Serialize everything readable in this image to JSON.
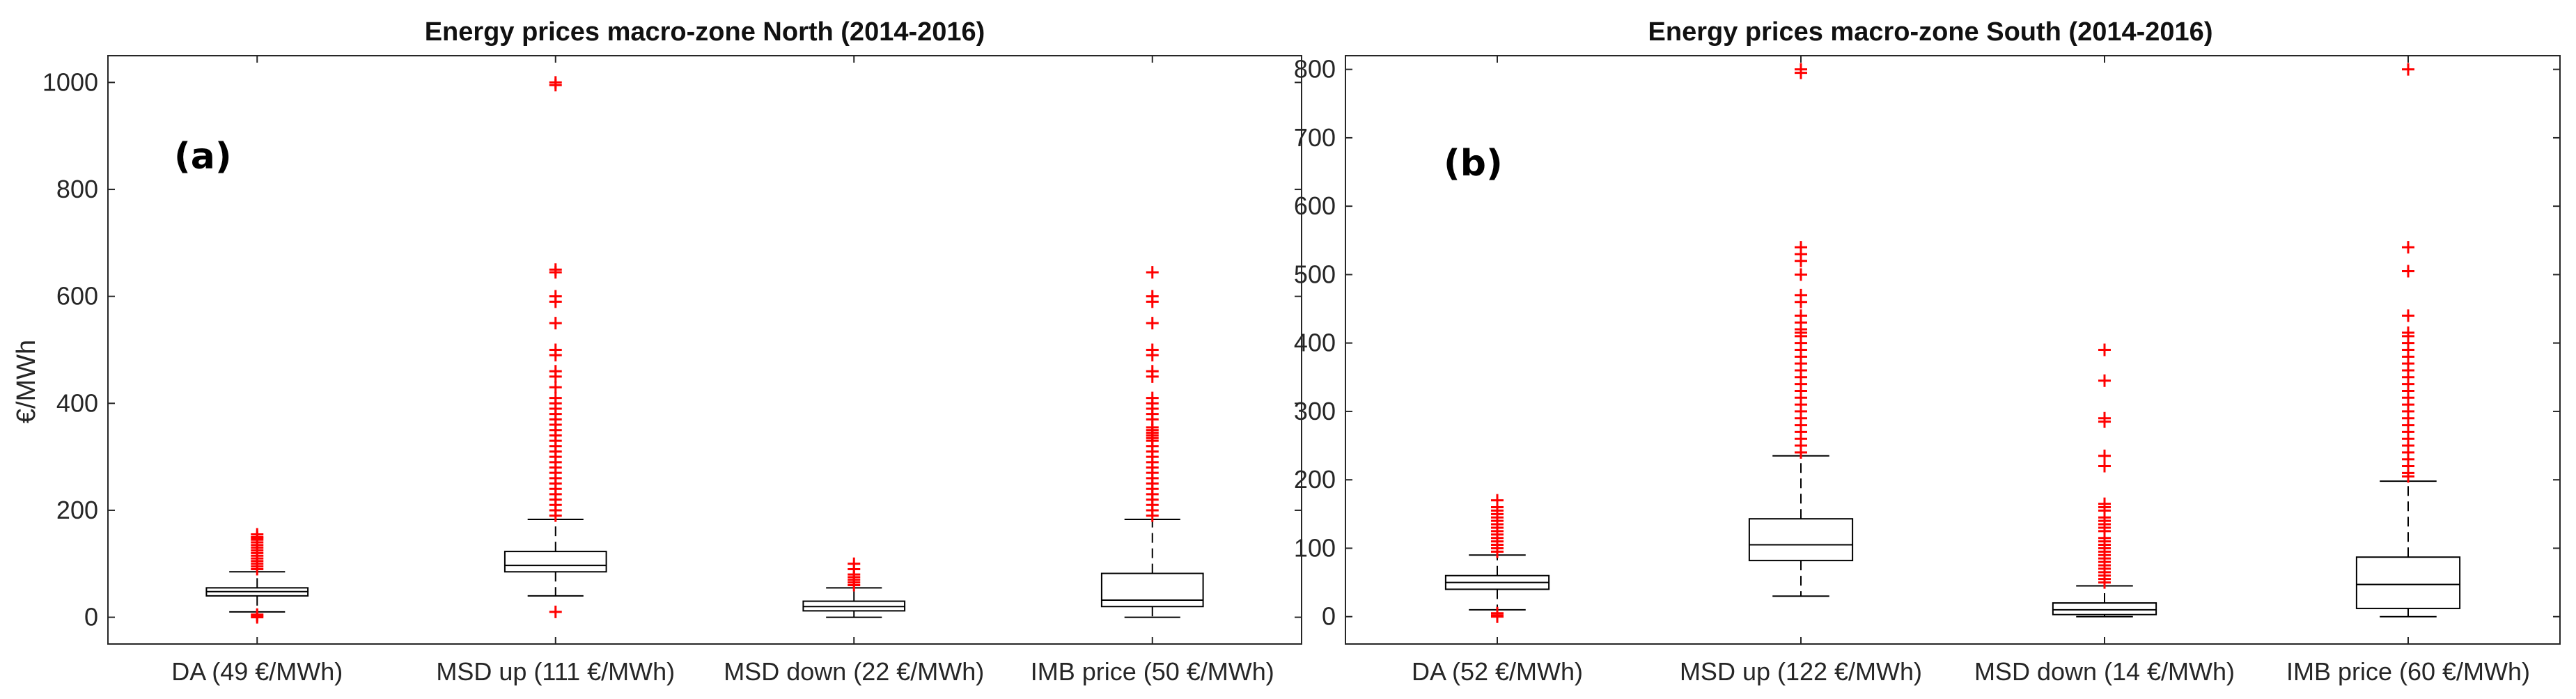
{
  "chart_data": [
    {
      "type": "box",
      "title": "Energy prices macro-zone North (2014-2016)",
      "panel_label": "(a)",
      "ylabel": "€/MWh",
      "xlabel": "",
      "ylim": [
        -50,
        1050
      ],
      "yticks": [
        0,
        200,
        400,
        600,
        800,
        1000
      ],
      "categories": [
        "DA (49 €/MWh)",
        "MSD up (111 €/MWh)",
        "MSD down (22 €/MWh)",
        "IMB price (50 €/MWh)"
      ],
      "boxes": [
        {
          "q1": 40,
          "median": 48,
          "q3": 55,
          "whisker_low": 10,
          "whisker_high": 85,
          "outliers": [
            0,
            3,
            5,
            150,
            148,
            145,
            140,
            135,
            130,
            125,
            120,
            115,
            110,
            105,
            100,
            95,
            90,
            155
          ]
        },
        {
          "q1": 85,
          "median": 97,
          "q3": 123,
          "whisker_low": 40,
          "whisker_high": 183,
          "outliers": [
            10,
            1000,
            995,
            650,
            645,
            600,
            590,
            550,
            500,
            490,
            460,
            450,
            430,
            410,
            400,
            390,
            380,
            370,
            360,
            350,
            340,
            330,
            320,
            310,
            300,
            290,
            280,
            270,
            260,
            250,
            240,
            230,
            220,
            210,
            200,
            190
          ]
        },
        {
          "q1": 12,
          "median": 20,
          "q3": 30,
          "whisker_low": 0,
          "whisker_high": 55,
          "outliers": [
            60,
            65,
            70,
            75,
            80,
            90,
            100
          ]
        },
        {
          "q1": 20,
          "median": 32,
          "q3": 82,
          "whisker_low": 0,
          "whisker_high": 183,
          "outliers": [
            645,
            600,
            590,
            550,
            500,
            490,
            460,
            450,
            410,
            400,
            390,
            380,
            370,
            355,
            350,
            345,
            340,
            335,
            330,
            320,
            310,
            300,
            290,
            280,
            270,
            260,
            250,
            240,
            230,
            220,
            210,
            200,
            190
          ]
        }
      ]
    },
    {
      "type": "box",
      "title": "Energy prices macro-zone South (2014-2016)",
      "panel_label": "(b)",
      "ylabel": "",
      "xlabel": "",
      "ylim": [
        -40,
        820
      ],
      "yticks": [
        0,
        100,
        200,
        300,
        400,
        500,
        600,
        700,
        800
      ],
      "categories": [
        "DA (52 €/MWh)",
        "MSD up (122 €/MWh)",
        "MSD down (14 €/MWh)",
        "IMB price (60 €/MWh)"
      ],
      "boxes": [
        {
          "q1": 40,
          "median": 50,
          "q3": 60,
          "whisker_low": 10,
          "whisker_high": 90,
          "outliers": [
            0,
            2,
            5,
            170,
            160,
            155,
            150,
            145,
            140,
            135,
            130,
            125,
            120,
            115,
            110,
            105,
            100,
            95
          ]
        },
        {
          "q1": 82,
          "median": 105,
          "q3": 143,
          "whisker_low": 30,
          "whisker_high": 235,
          "outliers": [
            800,
            795,
            540,
            530,
            520,
            500,
            470,
            460,
            440,
            430,
            420,
            415,
            410,
            400,
            390,
            380,
            370,
            360,
            350,
            340,
            330,
            320,
            310,
            300,
            290,
            280,
            270,
            260,
            250,
            240
          ]
        },
        {
          "q1": 3,
          "median": 10,
          "q3": 20,
          "whisker_low": 0,
          "whisker_high": 45,
          "outliers": [
            390,
            345,
            290,
            285,
            235,
            220,
            165,
            160,
            155,
            145,
            140,
            135,
            130,
            125,
            115,
            110,
            105,
            100,
            95,
            90,
            85,
            80,
            75,
            70,
            65,
            60,
            55,
            50
          ]
        },
        {
          "q1": 12,
          "median": 47,
          "q3": 87,
          "whisker_low": 0,
          "whisker_high": 198,
          "outliers": [
            800,
            540,
            505,
            440,
            415,
            410,
            400,
            390,
            380,
            370,
            360,
            350,
            340,
            330,
            320,
            310,
            300,
            290,
            280,
            270,
            260,
            250,
            240,
            230,
            220,
            210,
            205
          ]
        }
      ]
    }
  ]
}
